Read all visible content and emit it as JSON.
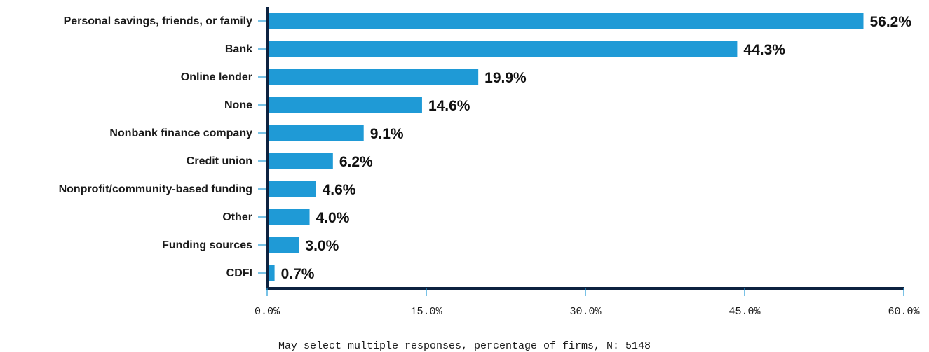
{
  "chart_data": {
    "type": "bar",
    "orientation": "horizontal",
    "categories": [
      "Personal savings, friends, or family",
      "Bank",
      "Online lender",
      "None",
      "Nonbank finance company",
      "Credit union",
      "Nonprofit/community-based funding",
      "Other",
      "Funding sources",
      "CDFI"
    ],
    "values": [
      56.2,
      44.3,
      19.9,
      14.6,
      9.1,
      6.2,
      4.6,
      4.0,
      3.0,
      0.7
    ],
    "value_labels": [
      "56.2%",
      "44.3%",
      "19.9%",
      "14.6%",
      "9.1%",
      "6.2%",
      "4.6%",
      "4.0%",
      "3.0%",
      "0.7%"
    ],
    "xlim": [
      0,
      60
    ],
    "xticks": [
      0,
      15,
      30,
      45,
      60
    ],
    "xtick_labels": [
      "0.0%",
      "15.0%",
      "30.0%",
      "45.0%",
      "60.0%"
    ],
    "grid": false,
    "bar_color": "#1f9ad6",
    "axis_color": "#0d2240",
    "note": "May select multiple responses, percentage of firms, N: 5148"
  }
}
